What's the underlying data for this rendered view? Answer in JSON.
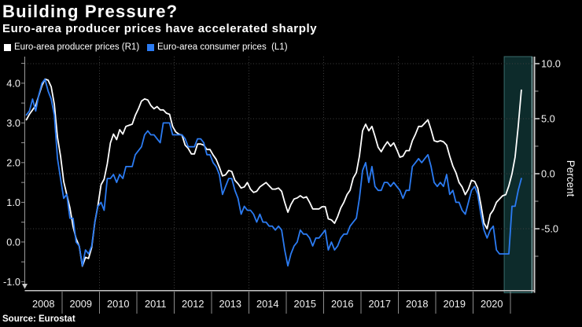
{
  "header": {
    "title": "Building Pressure?",
    "subtitle": "Euro-area producer prices have accelerated sharply"
  },
  "legend": [
    {
      "label": "Euro-area producer prices (R1)",
      "color": "#ffffff"
    },
    {
      "label": "Euro-area consumer prices  (L1)",
      "color": "#2b7bf2"
    }
  ],
  "footer": {
    "source": "Source: Eurostat"
  },
  "colors": {
    "background": "#000000",
    "grid": "#404040",
    "axis_line": "#c6c6c6",
    "minor_tick": "#a8a8a8",
    "divider": "#8c8c8c",
    "left_axis": "#9a9a9a",
    "text": "#f2f2f2"
  },
  "chart_data": {
    "type": "line",
    "title": "Building Pressure?",
    "subtitle": "Euro-area producer prices have accelerated sharply",
    "source": "Source: Eurostat",
    "frequency": "monthly",
    "x_start": "2008-01",
    "x_end": "2021-04",
    "x_year_labels": [
      "2008",
      "2009",
      "2010",
      "2011",
      "2012",
      "2013",
      "2014",
      "2015",
      "2016",
      "2017",
      "2018",
      "2019",
      "2020"
    ],
    "axes": {
      "left": {
        "min": -1.21,
        "max": 4.67,
        "ticks": [
          4,
          3,
          2,
          1,
          0,
          -1
        ],
        "tick_labels": [
          "4.0",
          "3.0",
          "2.0",
          "1.0",
          "0.0",
          "-1.0"
        ],
        "minor_step": 0.5
      },
      "right": {
        "min": -10.57,
        "max": 10.64,
        "ticks": [
          10,
          5,
          0,
          -5
        ],
        "tick_labels": [
          "10.0",
          "5.0",
          "0.0",
          "-5.0"
        ],
        "minor_ticks": [
          7.5,
          2.5,
          -2.5,
          -7.5
        ],
        "label": "Percent"
      }
    },
    "grid": {
      "style": "dotted",
      "horizontal_right_values": [
        10,
        5,
        0,
        -5
      ],
      "vertical_year_starts": [
        2010,
        2012,
        2014,
        2016,
        2018,
        2020
      ]
    },
    "highlight_band": {
      "from": "2020-11",
      "to": "2021-06",
      "fill": "#0d2b2b",
      "border": "#3a6c6c",
      "right_edge": "#7fa9a9"
    },
    "series": [
      {
        "name": "Euro-area producer prices",
        "axis_tag": "R1",
        "axis": "right",
        "color": "#ffffff",
        "values": [
          4.9,
          5.4,
          5.8,
          6.2,
          7.1,
          8.0,
          8.6,
          8.5,
          7.9,
          6.3,
          3.3,
          1.6,
          -0.7,
          -1.9,
          -3.1,
          -4.8,
          -5.9,
          -6.6,
          -8.4,
          -7.6,
          -7.7,
          -6.7,
          -4.4,
          -2.9,
          -1.0,
          -0.5,
          0.9,
          2.8,
          3.6,
          3.1,
          4.0,
          3.6,
          4.3,
          4.4,
          4.5,
          5.3,
          5.9,
          6.6,
          6.8,
          6.7,
          6.2,
          5.9,
          6.1,
          5.8,
          5.8,
          5.5,
          5.4,
          4.3,
          3.8,
          3.6,
          3.5,
          2.6,
          2.3,
          1.8,
          1.8,
          2.7,
          2.7,
          2.6,
          2.2,
          2.2,
          1.7,
          1.3,
          0.6,
          -0.2,
          -0.1,
          0.3,
          0.2,
          -0.6,
          -0.9,
          -1.3,
          -1.2,
          -0.8,
          -1.4,
          -1.7,
          -1.6,
          -1.2,
          -1.0,
          -0.8,
          -1.1,
          -1.4,
          -1.4,
          -1.3,
          -1.6,
          -2.6,
          -3.5,
          -2.8,
          -2.3,
          -2.2,
          -2.0,
          -2.2,
          -2.1,
          -2.6,
          -3.2,
          -3.2,
          -3.2,
          -3.0,
          -3.0,
          -4.1,
          -4.2,
          -4.5,
          -3.9,
          -3.1,
          -2.6,
          -1.9,
          -1.5,
          -0.4,
          0.1,
          1.6,
          3.9,
          4.5,
          3.9,
          4.3,
          3.4,
          2.4,
          2.0,
          2.5,
          2.9,
          2.5,
          2.8,
          2.2,
          1.5,
          1.6,
          2.1,
          2.1,
          3.0,
          3.6,
          4.3,
          4.3,
          4.6,
          4.9,
          4.0,
          3.0,
          2.9,
          3.0,
          2.9,
          2.6,
          1.6,
          0.7,
          0.1,
          -0.8,
          -1.2,
          -1.9,
          -1.4,
          -0.6,
          -0.7,
          -1.3,
          -2.8,
          -4.5,
          -5.0,
          -3.7,
          -3.3,
          -2.6,
          -2.3,
          -2.0,
          -1.9,
          -1.1,
          0.0,
          1.5,
          4.3,
          7.6
        ]
      },
      {
        "name": "Euro-area consumer prices",
        "axis_tag": "L1",
        "axis": "left",
        "color": "#2b7bf2",
        "values": [
          3.2,
          3.3,
          3.6,
          3.3,
          3.7,
          4.0,
          4.1,
          3.8,
          3.6,
          3.2,
          2.1,
          1.6,
          1.1,
          1.2,
          0.6,
          0.6,
          0.0,
          -0.1,
          -0.6,
          -0.2,
          -0.3,
          -0.1,
          0.5,
          0.9,
          1.0,
          0.8,
          1.6,
          1.6,
          1.7,
          1.5,
          1.7,
          1.6,
          1.9,
          1.9,
          1.9,
          2.2,
          2.3,
          2.4,
          2.7,
          2.8,
          2.7,
          2.7,
          2.6,
          2.5,
          3.0,
          3.0,
          3.0,
          2.7,
          2.7,
          2.7,
          2.7,
          2.6,
          2.4,
          2.4,
          2.4,
          2.6,
          2.6,
          2.5,
          2.2,
          2.2,
          2.0,
          1.9,
          1.7,
          1.2,
          1.4,
          1.6,
          1.6,
          1.3,
          1.1,
          0.7,
          0.9,
          0.8,
          0.8,
          0.7,
          0.5,
          0.7,
          0.5,
          0.5,
          0.4,
          0.4,
          0.3,
          0.4,
          0.3,
          -0.2,
          -0.6,
          -0.3,
          -0.1,
          0.0,
          0.3,
          0.2,
          0.2,
          0.1,
          -0.1,
          0.1,
          0.1,
          0.2,
          0.3,
          -0.2,
          0.0,
          -0.2,
          -0.1,
          0.1,
          0.2,
          0.2,
          0.4,
          0.5,
          0.6,
          1.1,
          1.8,
          2.0,
          1.5,
          1.9,
          1.4,
          1.3,
          1.3,
          1.5,
          1.5,
          1.4,
          1.5,
          1.4,
          1.3,
          1.1,
          1.3,
          1.3,
          1.9,
          2.0,
          2.1,
          2.0,
          2.1,
          2.2,
          1.9,
          1.5,
          1.4,
          1.5,
          1.4,
          1.7,
          1.2,
          1.3,
          1.0,
          1.0,
          0.8,
          0.7,
          1.0,
          1.3,
          1.4,
          1.2,
          0.7,
          0.3,
          0.1,
          0.3,
          0.4,
          -0.2,
          -0.3,
          -0.3,
          -0.3,
          -0.3,
          0.9,
          0.9,
          1.3,
          1.6
        ]
      }
    ]
  }
}
